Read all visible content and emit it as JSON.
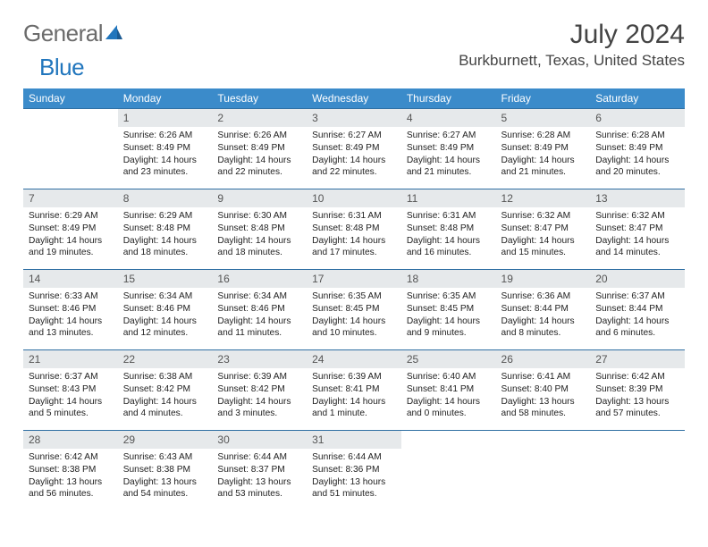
{
  "logo": {
    "text1": "General",
    "text2": "Blue"
  },
  "title": "July 2024",
  "location": "Burkburnett, Texas, United States",
  "colors": {
    "header_bg": "#3b8bca",
    "header_text": "#ffffff",
    "daynum_bg": "#e6e9eb",
    "day_border": "#2f6fa3",
    "logo_gray": "#6b6b6b",
    "logo_blue": "#2176bd"
  },
  "weekdays": [
    "Sunday",
    "Monday",
    "Tuesday",
    "Wednesday",
    "Thursday",
    "Friday",
    "Saturday"
  ],
  "weeks": [
    [
      null,
      {
        "n": "1",
        "sunrise": "6:26 AM",
        "sunset": "8:49 PM",
        "daylight": "14 hours and 23 minutes."
      },
      {
        "n": "2",
        "sunrise": "6:26 AM",
        "sunset": "8:49 PM",
        "daylight": "14 hours and 22 minutes."
      },
      {
        "n": "3",
        "sunrise": "6:27 AM",
        "sunset": "8:49 PM",
        "daylight": "14 hours and 22 minutes."
      },
      {
        "n": "4",
        "sunrise": "6:27 AM",
        "sunset": "8:49 PM",
        "daylight": "14 hours and 21 minutes."
      },
      {
        "n": "5",
        "sunrise": "6:28 AM",
        "sunset": "8:49 PM",
        "daylight": "14 hours and 21 minutes."
      },
      {
        "n": "6",
        "sunrise": "6:28 AM",
        "sunset": "8:49 PM",
        "daylight": "14 hours and 20 minutes."
      }
    ],
    [
      {
        "n": "7",
        "sunrise": "6:29 AM",
        "sunset": "8:49 PM",
        "daylight": "14 hours and 19 minutes."
      },
      {
        "n": "8",
        "sunrise": "6:29 AM",
        "sunset": "8:48 PM",
        "daylight": "14 hours and 18 minutes."
      },
      {
        "n": "9",
        "sunrise": "6:30 AM",
        "sunset": "8:48 PM",
        "daylight": "14 hours and 18 minutes."
      },
      {
        "n": "10",
        "sunrise": "6:31 AM",
        "sunset": "8:48 PM",
        "daylight": "14 hours and 17 minutes."
      },
      {
        "n": "11",
        "sunrise": "6:31 AM",
        "sunset": "8:48 PM",
        "daylight": "14 hours and 16 minutes."
      },
      {
        "n": "12",
        "sunrise": "6:32 AM",
        "sunset": "8:47 PM",
        "daylight": "14 hours and 15 minutes."
      },
      {
        "n": "13",
        "sunrise": "6:32 AM",
        "sunset": "8:47 PM",
        "daylight": "14 hours and 14 minutes."
      }
    ],
    [
      {
        "n": "14",
        "sunrise": "6:33 AM",
        "sunset": "8:46 PM",
        "daylight": "14 hours and 13 minutes."
      },
      {
        "n": "15",
        "sunrise": "6:34 AM",
        "sunset": "8:46 PM",
        "daylight": "14 hours and 12 minutes."
      },
      {
        "n": "16",
        "sunrise": "6:34 AM",
        "sunset": "8:46 PM",
        "daylight": "14 hours and 11 minutes."
      },
      {
        "n": "17",
        "sunrise": "6:35 AM",
        "sunset": "8:45 PM",
        "daylight": "14 hours and 10 minutes."
      },
      {
        "n": "18",
        "sunrise": "6:35 AM",
        "sunset": "8:45 PM",
        "daylight": "14 hours and 9 minutes."
      },
      {
        "n": "19",
        "sunrise": "6:36 AM",
        "sunset": "8:44 PM",
        "daylight": "14 hours and 8 minutes."
      },
      {
        "n": "20",
        "sunrise": "6:37 AM",
        "sunset": "8:44 PM",
        "daylight": "14 hours and 6 minutes."
      }
    ],
    [
      {
        "n": "21",
        "sunrise": "6:37 AM",
        "sunset": "8:43 PM",
        "daylight": "14 hours and 5 minutes."
      },
      {
        "n": "22",
        "sunrise": "6:38 AM",
        "sunset": "8:42 PM",
        "daylight": "14 hours and 4 minutes."
      },
      {
        "n": "23",
        "sunrise": "6:39 AM",
        "sunset": "8:42 PM",
        "daylight": "14 hours and 3 minutes."
      },
      {
        "n": "24",
        "sunrise": "6:39 AM",
        "sunset": "8:41 PM",
        "daylight": "14 hours and 1 minute."
      },
      {
        "n": "25",
        "sunrise": "6:40 AM",
        "sunset": "8:41 PM",
        "daylight": "14 hours and 0 minutes."
      },
      {
        "n": "26",
        "sunrise": "6:41 AM",
        "sunset": "8:40 PM",
        "daylight": "13 hours and 58 minutes."
      },
      {
        "n": "27",
        "sunrise": "6:42 AM",
        "sunset": "8:39 PM",
        "daylight": "13 hours and 57 minutes."
      }
    ],
    [
      {
        "n": "28",
        "sunrise": "6:42 AM",
        "sunset": "8:38 PM",
        "daylight": "13 hours and 56 minutes."
      },
      {
        "n": "29",
        "sunrise": "6:43 AM",
        "sunset": "8:38 PM",
        "daylight": "13 hours and 54 minutes."
      },
      {
        "n": "30",
        "sunrise": "6:44 AM",
        "sunset": "8:37 PM",
        "daylight": "13 hours and 53 minutes."
      },
      {
        "n": "31",
        "sunrise": "6:44 AM",
        "sunset": "8:36 PM",
        "daylight": "13 hours and 51 minutes."
      },
      null,
      null,
      null
    ]
  ],
  "labels": {
    "sunrise": "Sunrise: ",
    "sunset": "Sunset: ",
    "daylight": "Daylight: "
  }
}
